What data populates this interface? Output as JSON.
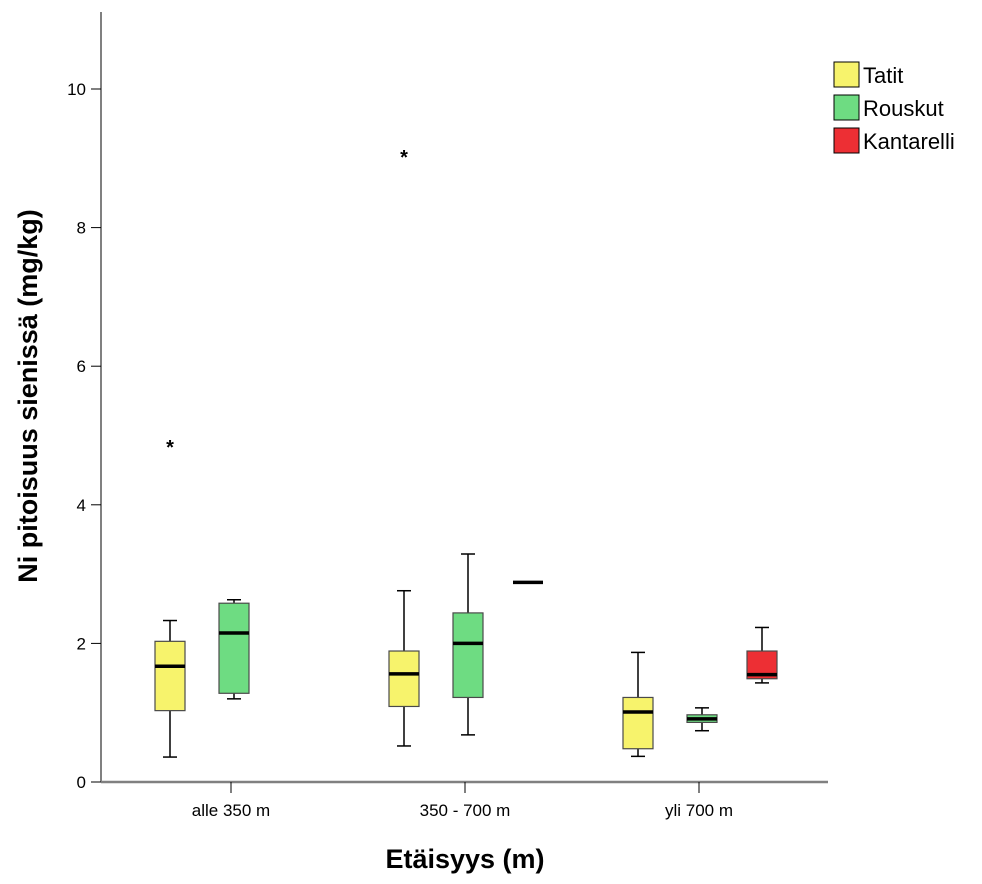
{
  "chart_data": {
    "type": "boxplot",
    "title": "",
    "xlabel": "Etäisyys (m)",
    "ylabel": "Ni pitoisuus sienissä (mg/kg)",
    "ylim": [
      0,
      11
    ],
    "yticks": [
      0,
      2,
      4,
      6,
      8,
      10
    ],
    "ytick_labels": [
      "0",
      "2",
      "4",
      "6",
      "8",
      "10"
    ],
    "grid": false,
    "legend_position": "top-right",
    "categories": [
      "alle 350 m",
      "350 - 700 m",
      "yli 700 m"
    ],
    "series": [
      {
        "name": "Tatit",
        "color": "#f7f36c",
        "boxes": [
          {
            "category": "alle 350 m",
            "min": 0.36,
            "q1": 1.03,
            "median": 1.67,
            "q3": 2.03,
            "max": 2.33,
            "outliers": [
              4.85
            ]
          },
          {
            "category": "350 - 700 m",
            "min": 0.52,
            "q1": 1.09,
            "median": 1.56,
            "q3": 1.89,
            "max": 2.76,
            "outliers": [
              9.03
            ]
          },
          {
            "category": "yli 700 m",
            "min": 0.37,
            "q1": 0.48,
            "median": 1.01,
            "q3": 1.22,
            "max": 1.87,
            "outliers": []
          }
        ]
      },
      {
        "name": "Rouskut",
        "color": "#6edc82",
        "boxes": [
          {
            "category": "alle 350 m",
            "min": 1.2,
            "q1": 1.28,
            "median": 2.15,
            "q3": 2.58,
            "max": 2.63,
            "outliers": []
          },
          {
            "category": "350 - 700 m",
            "min": 0.68,
            "q1": 1.22,
            "median": 2.0,
            "q3": 2.44,
            "max": 3.29,
            "outliers": []
          },
          {
            "category": "yli 700 m",
            "min": 0.74,
            "q1": 0.86,
            "median": 0.91,
            "q3": 0.97,
            "max": 1.07,
            "outliers": []
          }
        ]
      },
      {
        "name": "Kantarelli",
        "color": "#ed2f34",
        "boxes": [
          {
            "category": "350 - 700 m",
            "min": 2.88,
            "q1": 2.88,
            "median": 2.88,
            "q3": 2.88,
            "max": 2.88,
            "outliers": []
          },
          {
            "category": "yli 700 m",
            "min": 1.43,
            "q1": 1.49,
            "median": 1.55,
            "q3": 1.89,
            "max": 2.23,
            "outliers": []
          }
        ]
      }
    ]
  }
}
